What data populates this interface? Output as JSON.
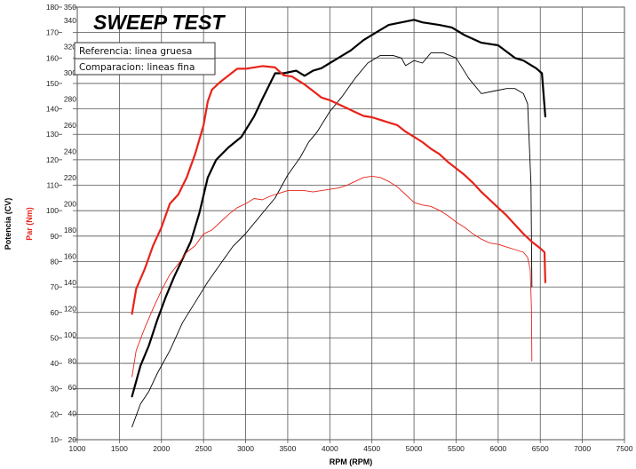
{
  "chart_data": {
    "type": "line",
    "title": "SWEEP TEST",
    "xlabel": "RPM (RPM)",
    "ylabel_left": "Potencia (CV)",
    "ylabel_right": "Par (Nm)",
    "xlim": [
      1000,
      7500
    ],
    "x_ticks": [
      "1000",
      "1500",
      "2000",
      "2500",
      "3000",
      "3500",
      "4000",
      "4500",
      "5000",
      "5500",
      "6000",
      "6500",
      "7000",
      "7500"
    ],
    "power_axis": {
      "range": [
        10,
        180
      ],
      "ticks": [
        "10",
        "20",
        "30",
        "40",
        "50",
        "60",
        "70",
        "80",
        "90",
        "100",
        "110",
        "120",
        "130",
        "140",
        "150",
        "160",
        "170",
        "180"
      ]
    },
    "torque_axis": {
      "range": [
        20,
        350
      ],
      "ticks": [
        "20",
        "40",
        "60",
        "80",
        "100",
        "120",
        "140",
        "160",
        "180",
        "200",
        "220",
        "240",
        "260",
        "280",
        "300",
        "320",
        "340",
        "350"
      ]
    },
    "grid": true,
    "legend": {
      "position": "top-left",
      "entries": [
        "Referencia: linea gruesa",
        "Comparacion: lineas fina"
      ]
    },
    "colors": {
      "power": "#000000",
      "torque": "#e8231a"
    },
    "series": [
      {
        "quantity": "power",
        "style": "thick",
        "axis": "power",
        "x": [
          1650,
          1750,
          1850,
          1950,
          2050,
          2150,
          2250,
          2350,
          2450,
          2550,
          2650,
          2800,
          2950,
          3100,
          3200,
          3350,
          3450,
          3600,
          3700,
          3800,
          3900,
          4000,
          4100,
          4250,
          4400,
          4550,
          4700,
          4850,
          5000,
          5100,
          5300,
          5450,
          5600,
          5800,
          6000,
          6200,
          6300,
          6450,
          6520,
          6560
        ],
        "y": [
          27,
          39,
          47,
          57,
          66,
          74,
          81,
          88,
          99,
          113,
          120,
          125,
          129,
          137,
          144,
          154,
          154,
          155,
          153,
          155,
          156,
          158,
          160,
          163,
          167,
          170,
          173,
          174,
          175,
          174,
          173,
          172,
          169,
          166,
          165,
          160,
          159,
          156,
          154,
          137
        ]
      },
      {
        "quantity": "power",
        "style": "thin",
        "axis": "power",
        "x": [
          1650,
          1750,
          1850,
          1950,
          2100,
          2250,
          2400,
          2550,
          2700,
          2850,
          3000,
          3200,
          3350,
          3500,
          3650,
          3750,
          3850,
          4000,
          4150,
          4300,
          4450,
          4600,
          4750,
          4850,
          4900,
          5000,
          5100,
          5200,
          5350,
          5500,
          5650,
          5800,
          5950,
          6100,
          6200,
          6300,
          6350,
          6390,
          6400
        ],
        "y": [
          15,
          24,
          29,
          36,
          45,
          56,
          64,
          72,
          79,
          86,
          91,
          99,
          105,
          114,
          121,
          127,
          131,
          139,
          145,
          152,
          158,
          161,
          161,
          160,
          157,
          159,
          158,
          162,
          162,
          160,
          152,
          146,
          147,
          148,
          148,
          146,
          142,
          110,
          70
        ]
      },
      {
        "quantity": "torque",
        "style": "thick",
        "axis": "torque",
        "x": [
          1650,
          1700,
          1800,
          1900,
          2000,
          2100,
          2200,
          2300,
          2400,
          2500,
          2550,
          2600,
          2700,
          2800,
          2900,
          3000,
          3100,
          3200,
          3350,
          3450,
          3550,
          3700,
          3800,
          3900,
          4000,
          4100,
          4200,
          4300,
          4400,
          4500,
          4600,
          4700,
          4800,
          4900,
          5000,
          5100,
          5200,
          5300,
          5400,
          5500,
          5600,
          5700,
          5800,
          5900,
          6000,
          6100,
          6200,
          6300,
          6400,
          6500,
          6550,
          6560
        ],
        "y": [
          116,
          135,
          150,
          168,
          182,
          200,
          207,
          220,
          238,
          260,
          278,
          287,
          293,
          298,
          303,
          303,
          304,
          305,
          304,
          298,
          297,
          291,
          286,
          281,
          279,
          276,
          273,
          270,
          267,
          266,
          264,
          262,
          260,
          255,
          251,
          247,
          242,
          238,
          232,
          227,
          222,
          216,
          209,
          203,
          197,
          191,
          184,
          177,
          171,
          166,
          163,
          140
        ]
      },
      {
        "quantity": "torque",
        "style": "thin",
        "axis": "torque",
        "x": [
          1650,
          1700,
          1800,
          1900,
          2000,
          2100,
          2200,
          2300,
          2400,
          2500,
          2600,
          2700,
          2800,
          2900,
          3000,
          3100,
          3200,
          3300,
          3400,
          3500,
          3600,
          3700,
          3800,
          3900,
          4000,
          4100,
          4200,
          4300,
          4400,
          4500,
          4600,
          4700,
          4800,
          4900,
          5000,
          5100,
          5200,
          5300,
          5400,
          5500,
          5600,
          5700,
          5800,
          5900,
          6000,
          6100,
          6200,
          6300,
          6350,
          6380,
          6395,
          6400
        ],
        "y": [
          68,
          88,
          105,
          120,
          134,
          146,
          154,
          163,
          168,
          177,
          180,
          186,
          192,
          197,
          200,
          204,
          203,
          206,
          208,
          210,
          210,
          210,
          209,
          210,
          211,
          212,
          214,
          217,
          220,
          221,
          220,
          217,
          213,
          207,
          201,
          199,
          198,
          195,
          191,
          186,
          182,
          177,
          173,
          170,
          169,
          167,
          165,
          163,
          159,
          150,
          120,
          80
        ]
      }
    ]
  }
}
